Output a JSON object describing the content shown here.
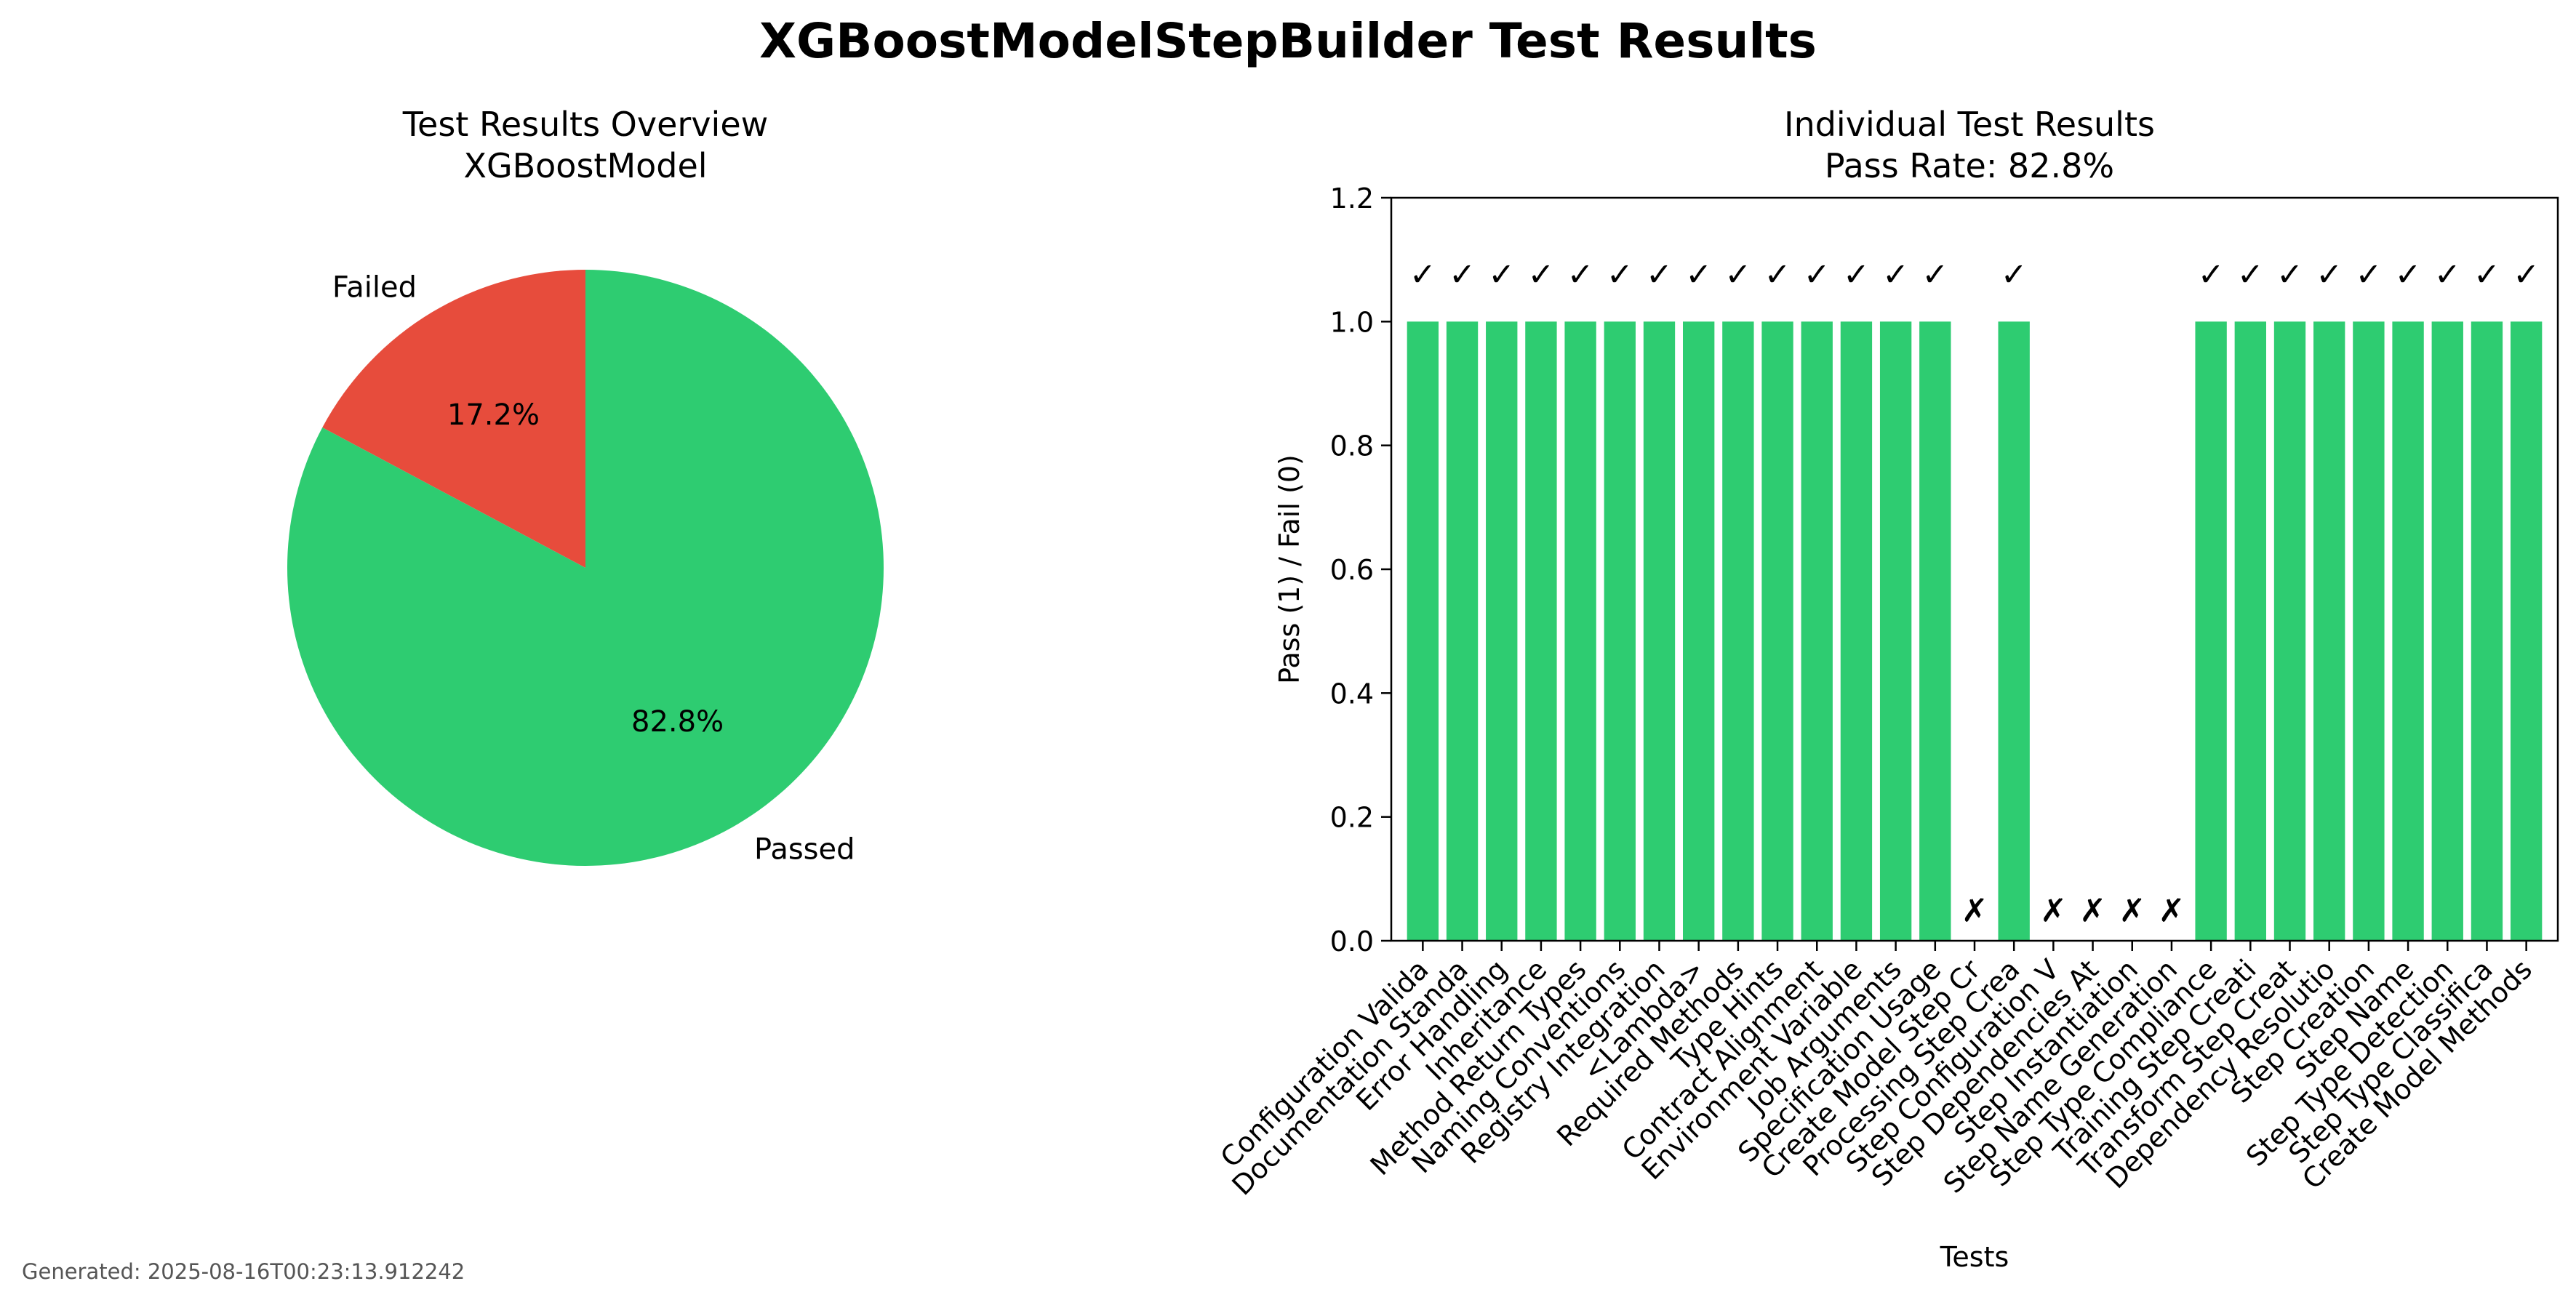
{
  "page": {
    "title": "XGBoostModelStepBuilder Test Results",
    "footer": "Generated: 2025-08-16T00:23:13.912242"
  },
  "chart_data": [
    {
      "type": "pie",
      "title": "Test Results Overview",
      "subtitle": "XGBoostModel",
      "slices": [
        {
          "label": "Passed",
          "value": 82.8,
          "pct_label": "82.8%",
          "color": "#2ecc71"
        },
        {
          "label": "Failed",
          "value": 17.2,
          "pct_label": "17.2%",
          "color": "#e74c3c"
        }
      ]
    },
    {
      "type": "bar",
      "title": "Individual Test Results",
      "subtitle": "Pass Rate: 82.8%",
      "xlabel": "Tests",
      "ylabel": "Pass (1) / Fail (0)",
      "ylim": [
        0,
        1.2
      ],
      "yticks": [
        "0.0",
        "0.2",
        "0.4",
        "0.6",
        "0.8",
        "1.0",
        "1.2"
      ],
      "bar_color": "#2ecc71",
      "pass_mark": "✓",
      "fail_mark": "✗",
      "categories": [
        "Configuration Valida",
        "Documentation Standa",
        "Error Handling",
        "Inheritance",
        "Method Return Types",
        "Naming Conventions",
        "Registry Integration",
        "<Lambda>",
        "Required Methods",
        "Type Hints",
        "Contract Alignment",
        "Environment Variable",
        "Job Arguments",
        "Specification Usage",
        "Create Model Step Cr",
        "Processing Step Crea",
        "Step Configuration V",
        "Step Dependencies At",
        "Step Instantiation",
        "Step Name Generation",
        "Step Type Compliance",
        "Training Step Creati",
        "Transform Step Creat",
        "Dependency Resolutio",
        "Step Creation",
        "Step Name",
        "Step Type Detection",
        "Step Type Classifica",
        "Create Model Methods"
      ],
      "values": [
        1,
        1,
        1,
        1,
        1,
        1,
        1,
        1,
        1,
        1,
        1,
        1,
        1,
        1,
        0,
        1,
        0,
        0,
        0,
        0,
        1,
        1,
        1,
        1,
        1,
        1,
        1,
        1,
        1
      ]
    }
  ]
}
